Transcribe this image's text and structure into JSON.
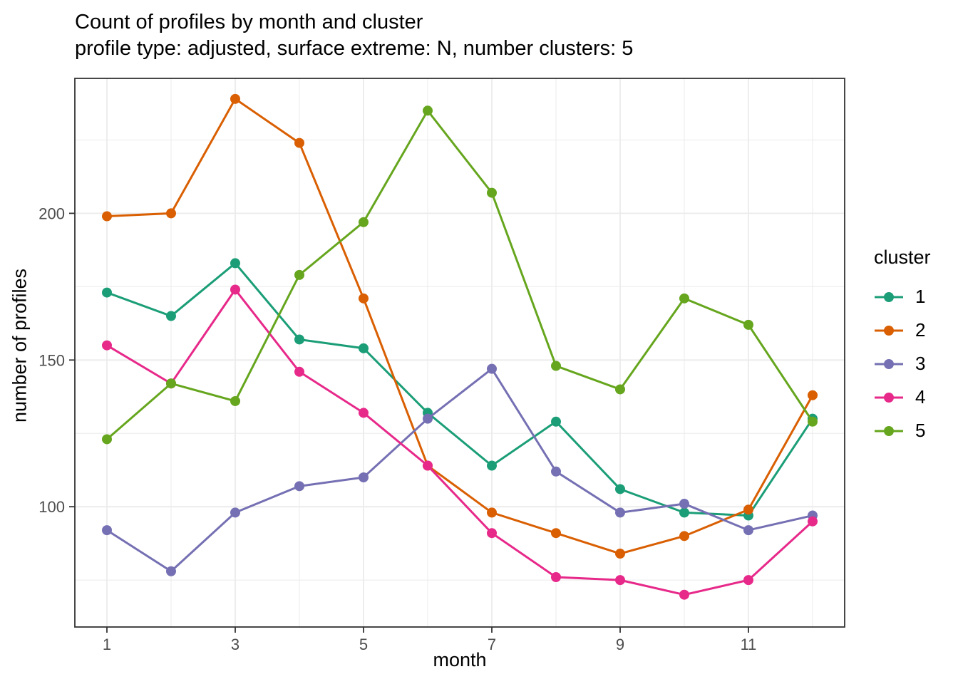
{
  "header": {
    "title": "Count of profiles by month and cluster",
    "subtitle": "profile type: adjusted, surface extreme: N, number clusters: 5"
  },
  "chart_data": {
    "type": "line",
    "title": "Count of profiles by month and cluster",
    "subtitle": "profile type: adjusted, surface extreme: N, number clusters: 5",
    "xlabel": "month",
    "ylabel": "number of profiles",
    "legend_title": "cluster",
    "legend_position": "right",
    "grid": true,
    "x": [
      1,
      2,
      3,
      4,
      5,
      6,
      7,
      8,
      9,
      10,
      11,
      12
    ],
    "x_ticks": [
      1,
      3,
      5,
      7,
      9,
      11
    ],
    "x_minor_ticks": [
      2,
      4,
      6,
      8,
      10,
      12
    ],
    "y_ticks": [
      100,
      150,
      200
    ],
    "y_minor_ticks": [
      75,
      125,
      175,
      225
    ],
    "xlim": [
      0.5,
      12.5
    ],
    "ylim": [
      59,
      246
    ],
    "series": [
      {
        "name": "1",
        "color": "#1B9E77",
        "values": [
          173,
          165,
          183,
          157,
          154,
          132,
          114,
          129,
          106,
          98,
          97,
          130
        ]
      },
      {
        "name": "2",
        "color": "#D95F02",
        "values": [
          199,
          200,
          239,
          224,
          171,
          114,
          98,
          91,
          84,
          90,
          99,
          138
        ]
      },
      {
        "name": "3",
        "color": "#7570B3",
        "values": [
          92,
          78,
          98,
          107,
          110,
          130,
          147,
          112,
          98,
          101,
          92,
          97
        ]
      },
      {
        "name": "4",
        "color": "#E7298A",
        "values": [
          155,
          142,
          174,
          146,
          132,
          114,
          91,
          76,
          75,
          70,
          75,
          95
        ]
      },
      {
        "name": "5",
        "color": "#66A61E",
        "values": [
          123,
          142,
          136,
          179,
          197,
          235,
          207,
          148,
          140,
          171,
          162,
          129
        ]
      }
    ]
  },
  "style": {
    "background": "#FFFFFF",
    "grid_color": "#EBEBEB",
    "panel_border_color": "#333333",
    "tick_color": "#333333",
    "tick_label_color": "#4D4D4D",
    "text_color": "#000000"
  }
}
